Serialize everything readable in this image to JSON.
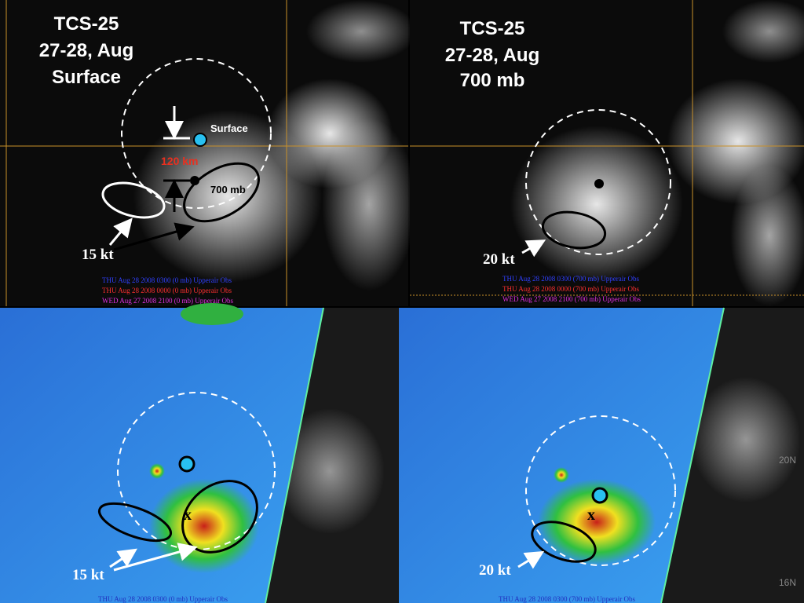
{
  "panels": [
    {
      "title": [
        "TCS-25",
        "27-28, Aug",
        "Surface"
      ],
      "center_label": "Surface",
      "distance": "120 km",
      "level": "700 mb",
      "wind": "15 kt",
      "legend": [
        "THU Aug 28 2008 0300 (0 mb) Upperair Obs",
        "THU Aug 28 2008 0000 (0 mb) Upperair Obs",
        "WED Aug 27 2008 2100 (0 mb) Upperair Obs"
      ]
    },
    {
      "title": [
        "TCS-25",
        "27-28, Aug",
        "700 mb"
      ],
      "wind": "20 kt",
      "legend": [
        "THU Aug 28 2008 0300 (700 mb) Upperair Obs",
        "THU Aug 28 2008 0000 (700 mb) Upperair Obs",
        "WED Aug 27 2008 2100 (700 mb) Upperair Obs"
      ]
    },
    {
      "wind": "15 kt",
      "marker": "x",
      "legend": [
        "THU Aug 28 2008 0300 (0 mb) Upperair Obs"
      ]
    },
    {
      "wind": "20 kt",
      "marker": "x",
      "lat_labels": [
        "20N",
        "16N"
      ],
      "legend": [
        "THU Aug 28 2008 0300 (700 mb) Upperair Obs"
      ]
    }
  ]
}
